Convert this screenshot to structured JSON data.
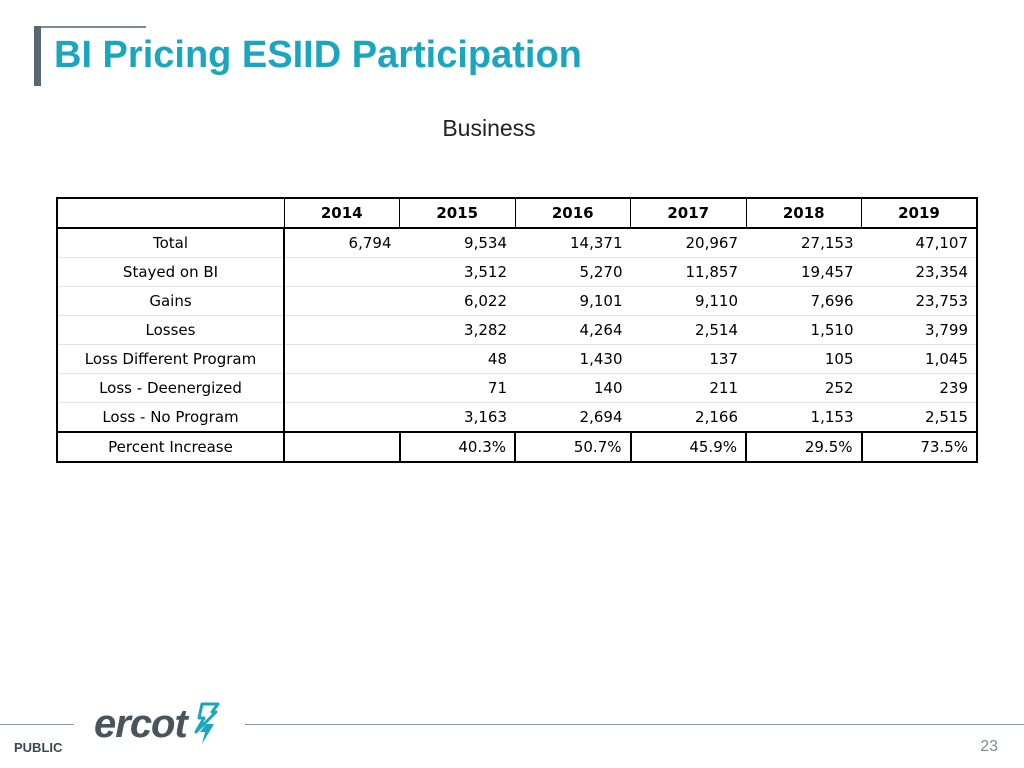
{
  "slide": {
    "title": "BI Pricing ESIID Participation",
    "subtitle": "Business"
  },
  "table": {
    "columns": [
      "",
      "2014",
      "2015",
      "2016",
      "2017",
      "2018",
      "2019"
    ],
    "rows": [
      {
        "label": "Total",
        "values": [
          "6,794",
          "9,534",
          "14,371",
          "20,967",
          "27,153",
          "47,107"
        ]
      },
      {
        "label": "Stayed on BI",
        "values": [
          "",
          "3,512",
          "5,270",
          "11,857",
          "19,457",
          "23,354"
        ]
      },
      {
        "label": "Gains",
        "values": [
          "",
          "6,022",
          "9,101",
          "9,110",
          "7,696",
          "23,753"
        ]
      },
      {
        "label": "Losses",
        "values": [
          "",
          "3,282",
          "4,264",
          "2,514",
          "1,510",
          "3,799"
        ]
      },
      {
        "label": "Loss Different Program",
        "values": [
          "",
          "48",
          "1,430",
          "137",
          "105",
          "1,045"
        ]
      },
      {
        "label": "Loss  - Deenergized",
        "values": [
          "",
          "71",
          "140",
          "211",
          "252",
          "239"
        ]
      },
      {
        "label": "Loss - No Program",
        "values": [
          "",
          "3,163",
          "2,694",
          "2,166",
          "1,153",
          "2,515"
        ]
      }
    ],
    "percent_row": {
      "label": "Percent Increase",
      "values": [
        "",
        "40.3%",
        "50.7%",
        "45.9%",
        "29.5%",
        "73.5%"
      ]
    }
  },
  "footer": {
    "classification": "PUBLIC",
    "logo_text": "ercot",
    "logo_icon": "ercot-bolt-icon",
    "page_number": "23"
  },
  "colors": {
    "title": "#1aa6bf",
    "accent_bar": "#5b6770",
    "logo": "#4a545c",
    "logo_icon": "#1aa6bf"
  }
}
